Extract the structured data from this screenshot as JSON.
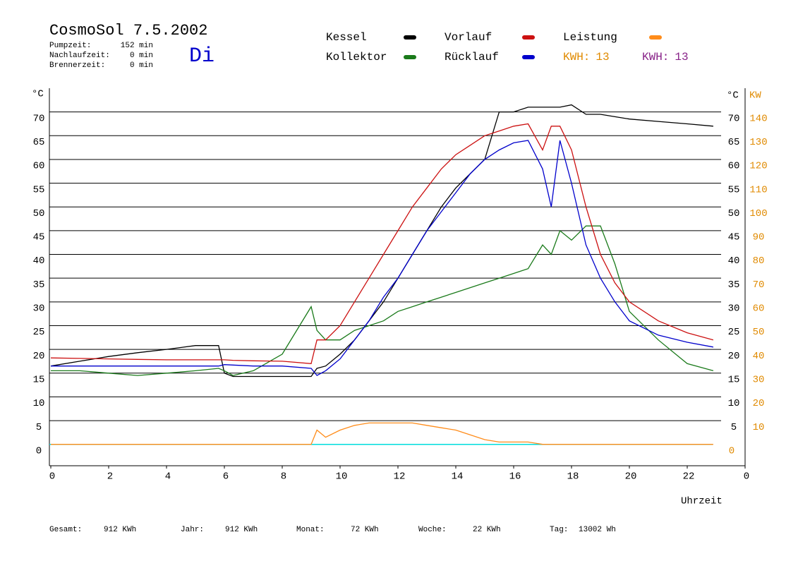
{
  "chart_data": {
    "type": "line",
    "title": "CosmoSol 7.5.2002",
    "day": "Di",
    "day_color": "#0000cc",
    "stats": [
      {
        "label": "Pumpzeit:",
        "value": "152 min"
      },
      {
        "label": "Nachlaufzeit:",
        "value": "0 min"
      },
      {
        "label": "Brennerzeit:",
        "value": "0 min"
      }
    ],
    "ylabel": "°C",
    "y2label_left": "°C",
    "y2label": "KW",
    "y2color": "#e08a00",
    "xlabel": "Uhrzeit",
    "x": [
      0,
      1,
      2,
      3,
      4,
      5,
      5.8,
      6,
      6.3,
      7,
      8,
      9,
      9.2,
      9.5,
      10,
      10.5,
      11,
      11.5,
      12,
      12.5,
      13,
      13.5,
      14,
      14.5,
      15,
      15.5,
      16,
      16.5,
      17,
      17.3,
      17.6,
      18,
      18.5,
      19,
      19.5,
      20,
      21,
      22,
      22.9
    ],
    "series": [
      {
        "name": "Kessel",
        "color": "#000000",
        "values": [
          16.5,
          17.5,
          18.5,
          19.3,
          20,
          20.8,
          20.8,
          15,
          14.3,
          14.3,
          14.3,
          14.3,
          16,
          16.5,
          19,
          22,
          26,
          30,
          35,
          40,
          45,
          50,
          54,
          57,
          60,
          70,
          70,
          71,
          71,
          71,
          71,
          71.5,
          69.5,
          69.5,
          69,
          68.5,
          68,
          67.5,
          67
        ]
      },
      {
        "name": "Kollektor",
        "color": "#1a7a1a",
        "values": [
          15.5,
          15.5,
          15,
          14.5,
          15,
          15.5,
          16,
          15.5,
          14.5,
          15.5,
          19,
          29,
          24,
          22,
          22,
          24,
          25,
          26,
          28,
          29,
          30,
          31,
          32,
          33,
          34,
          35,
          36,
          37,
          42,
          40,
          45,
          43,
          46,
          46,
          38,
          28,
          22,
          17,
          15.5
        ]
      },
      {
        "name": "Vorlauf",
        "color": "#cc1111",
        "values": [
          18.2,
          18.1,
          18,
          17.9,
          17.8,
          17.8,
          17.8,
          17.8,
          17.7,
          17.6,
          17.5,
          17,
          22,
          22,
          25,
          30,
          35,
          40,
          45,
          50,
          54,
          58,
          61,
          63,
          65,
          66,
          67,
          67.5,
          62,
          67,
          67,
          62,
          50,
          40,
          34,
          30,
          26,
          23.5,
          22
        ]
      },
      {
        "name": "Rücklauf",
        "color": "#0000cc",
        "values": [
          16.5,
          16.5,
          16.5,
          16.5,
          16.5,
          16.5,
          16.5,
          16.8,
          16.7,
          16.5,
          16.5,
          16,
          14.5,
          15.5,
          18,
          22,
          26,
          31,
          35,
          40,
          45,
          49,
          53,
          57,
          60,
          62,
          63.5,
          64,
          58,
          50,
          64,
          55,
          42,
          35,
          30,
          26,
          23,
          21.5,
          20.5
        ]
      },
      {
        "name": "Leistung",
        "color": "#ff8c1a",
        "axis": "y2",
        "values": [
          0,
          0,
          0,
          0,
          0,
          0,
          0,
          0,
          0,
          0,
          0,
          0,
          6,
          3,
          6,
          8,
          9,
          9,
          9,
          9,
          8,
          7,
          6,
          4,
          2,
          1,
          1,
          1,
          0,
          0,
          0,
          0,
          0,
          0,
          0,
          0,
          0,
          0,
          0
        ]
      }
    ],
    "kwh": [
      {
        "label": "KWH:",
        "value": 13,
        "color": "#e08a00"
      },
      {
        "label": "KWH:",
        "value": 13,
        "color": "#882288"
      }
    ],
    "xlim": [
      0,
      24
    ],
    "xticks": [
      0,
      2,
      4,
      6,
      8,
      10,
      12,
      14,
      16,
      18,
      20,
      22,
      {
        "value": 24,
        "label": "0"
      }
    ],
    "ylim": [
      -4.5,
      75
    ],
    "yticks": [
      0,
      5,
      10,
      15,
      20,
      25,
      30,
      35,
      40,
      45,
      50,
      55,
      60,
      65,
      70
    ],
    "y2lim": [
      -9,
      150
    ],
    "y2ticks": [
      0,
      10,
      20,
      30,
      40,
      50,
      60,
      70,
      80,
      90,
      100,
      110,
      120,
      130,
      140
    ],
    "grid": true,
    "zero_line_color": "#00dddd",
    "totals": [
      {
        "label": "Gesamt:",
        "value": "912 KWh"
      },
      {
        "label": "Jahr:",
        "value": "912 KWh"
      },
      {
        "label": "Monat:",
        "value": "72 KWh"
      },
      {
        "label": "Woche:",
        "value": "22 KWh"
      },
      {
        "label": "Tag:",
        "value": "13002 Wh"
      }
    ]
  }
}
